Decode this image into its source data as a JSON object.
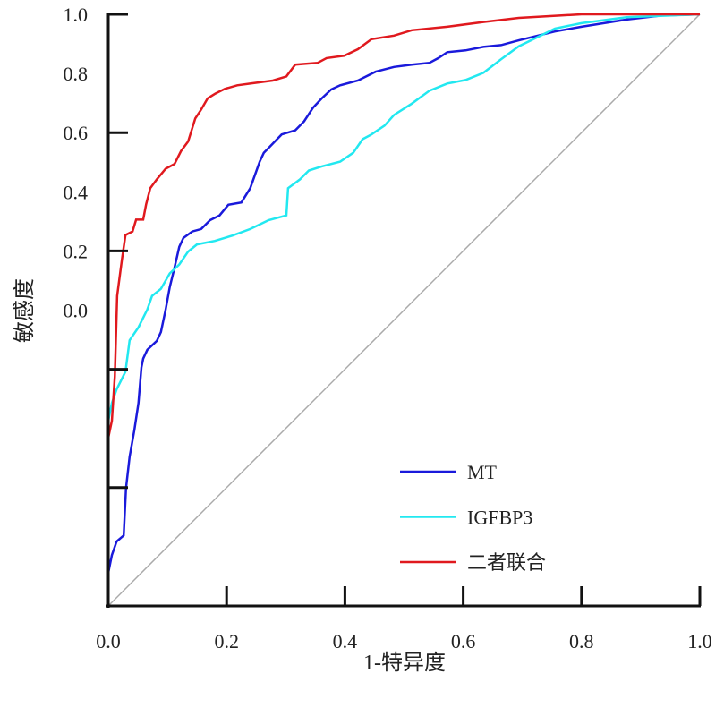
{
  "chart_data": {
    "type": "line",
    "title": "",
    "xlabel": "1-特异度",
    "ylabel": "敏感度",
    "xlim": [
      0,
      1
    ],
    "ylim": [
      0,
      1
    ],
    "xticks": [
      "0.0",
      "0.2",
      "0.4",
      "0.6",
      "0.8",
      "1.0"
    ],
    "ytick_labels_printed": [
      "1.0",
      "0.8",
      "0.6",
      "0.4",
      "0.2",
      "0.0"
    ],
    "grid": false,
    "legend_position": "bottom-right",
    "reference_line": {
      "name": "diagonal",
      "color": "#aaaaaa",
      "points": [
        [
          0,
          0
        ],
        [
          1,
          1
        ]
      ]
    },
    "series": [
      {
        "name": "MT",
        "color": "#1a1adb",
        "points": [
          [
            0,
            0.056
          ],
          [
            0.006,
            0.086
          ],
          [
            0.014,
            0.109
          ],
          [
            0.026,
            0.119
          ],
          [
            0.03,
            0.199
          ],
          [
            0.036,
            0.252
          ],
          [
            0.044,
            0.297
          ],
          [
            0.051,
            0.343
          ],
          [
            0.056,
            0.403
          ],
          [
            0.059,
            0.418
          ],
          [
            0.066,
            0.433
          ],
          [
            0.082,
            0.448
          ],
          [
            0.089,
            0.463
          ],
          [
            0.097,
            0.501
          ],
          [
            0.104,
            0.539
          ],
          [
            0.112,
            0.572
          ],
          [
            0.12,
            0.607
          ],
          [
            0.127,
            0.622
          ],
          [
            0.142,
            0.633
          ],
          [
            0.157,
            0.637
          ],
          [
            0.172,
            0.652
          ],
          [
            0.188,
            0.66
          ],
          [
            0.203,
            0.678
          ],
          [
            0.225,
            0.682
          ],
          [
            0.24,
            0.706
          ],
          [
            0.256,
            0.751
          ],
          [
            0.263,
            0.766
          ],
          [
            0.271,
            0.774
          ],
          [
            0.293,
            0.797
          ],
          [
            0.316,
            0.804
          ],
          [
            0.331,
            0.819
          ],
          [
            0.346,
            0.842
          ],
          [
            0.361,
            0.858
          ],
          [
            0.377,
            0.873
          ],
          [
            0.392,
            0.88
          ],
          [
            0.422,
            0.888
          ],
          [
            0.452,
            0.903
          ],
          [
            0.483,
            0.911
          ],
          [
            0.513,
            0.915
          ],
          [
            0.543,
            0.918
          ],
          [
            0.558,
            0.926
          ],
          [
            0.573,
            0.936
          ],
          [
            0.604,
            0.939
          ],
          [
            0.634,
            0.945
          ],
          [
            0.664,
            0.948
          ],
          [
            0.694,
            0.956
          ],
          [
            0.755,
            0.971
          ],
          [
            0.8,
            0.979
          ],
          [
            0.876,
            0.991
          ],
          [
            0.936,
            0.998
          ],
          [
            1,
            1
          ]
        ]
      },
      {
        "name": "IGFBP3",
        "color": "#22e8f0",
        "points": [
          [
            0,
            0.313
          ],
          [
            0.006,
            0.343
          ],
          [
            0.014,
            0.366
          ],
          [
            0.029,
            0.396
          ],
          [
            0.036,
            0.449
          ],
          [
            0.051,
            0.471
          ],
          [
            0.066,
            0.501
          ],
          [
            0.074,
            0.524
          ],
          [
            0.089,
            0.536
          ],
          [
            0.104,
            0.562
          ],
          [
            0.12,
            0.577
          ],
          [
            0.135,
            0.599
          ],
          [
            0.15,
            0.611
          ],
          [
            0.18,
            0.617
          ],
          [
            0.21,
            0.626
          ],
          [
            0.24,
            0.637
          ],
          [
            0.271,
            0.652
          ],
          [
            0.301,
            0.66
          ],
          [
            0.304,
            0.706
          ],
          [
            0.324,
            0.721
          ],
          [
            0.339,
            0.736
          ],
          [
            0.361,
            0.743
          ],
          [
            0.392,
            0.751
          ],
          [
            0.414,
            0.766
          ],
          [
            0.43,
            0.789
          ],
          [
            0.445,
            0.797
          ],
          [
            0.467,
            0.812
          ],
          [
            0.483,
            0.83
          ],
          [
            0.513,
            0.849
          ],
          [
            0.543,
            0.871
          ],
          [
            0.573,
            0.883
          ],
          [
            0.604,
            0.889
          ],
          [
            0.634,
            0.901
          ],
          [
            0.664,
            0.924
          ],
          [
            0.694,
            0.946
          ],
          [
            0.725,
            0.961
          ],
          [
            0.755,
            0.976
          ],
          [
            0.8,
            0.985
          ],
          [
            0.876,
            0.995
          ],
          [
            0.952,
            0.998
          ],
          [
            1,
            1
          ]
        ]
      },
      {
        "name": "二者联合",
        "color": "#e0191e",
        "points": [
          [
            0,
            0.284
          ],
          [
            0.006,
            0.313
          ],
          [
            0.011,
            0.388
          ],
          [
            0.015,
            0.524
          ],
          [
            0.023,
            0.585
          ],
          [
            0.029,
            0.627
          ],
          [
            0.041,
            0.633
          ],
          [
            0.047,
            0.653
          ],
          [
            0.059,
            0.653
          ],
          [
            0.064,
            0.679
          ],
          [
            0.071,
            0.706
          ],
          [
            0.082,
            0.721
          ],
          [
            0.097,
            0.739
          ],
          [
            0.112,
            0.747
          ],
          [
            0.123,
            0.769
          ],
          [
            0.135,
            0.785
          ],
          [
            0.147,
            0.824
          ],
          [
            0.157,
            0.839
          ],
          [
            0.168,
            0.858
          ],
          [
            0.181,
            0.866
          ],
          [
            0.197,
            0.874
          ],
          [
            0.218,
            0.88
          ],
          [
            0.241,
            0.883
          ],
          [
            0.278,
            0.888
          ],
          [
            0.301,
            0.895
          ],
          [
            0.316,
            0.915
          ],
          [
            0.354,
            0.918
          ],
          [
            0.369,
            0.926
          ],
          [
            0.399,
            0.93
          ],
          [
            0.422,
            0.941
          ],
          [
            0.445,
            0.958
          ],
          [
            0.483,
            0.964
          ],
          [
            0.513,
            0.973
          ],
          [
            0.573,
            0.979
          ],
          [
            0.634,
            0.987
          ],
          [
            0.694,
            0.994
          ],
          [
            0.8,
            1
          ],
          [
            1,
            1
          ]
        ]
      }
    ]
  }
}
